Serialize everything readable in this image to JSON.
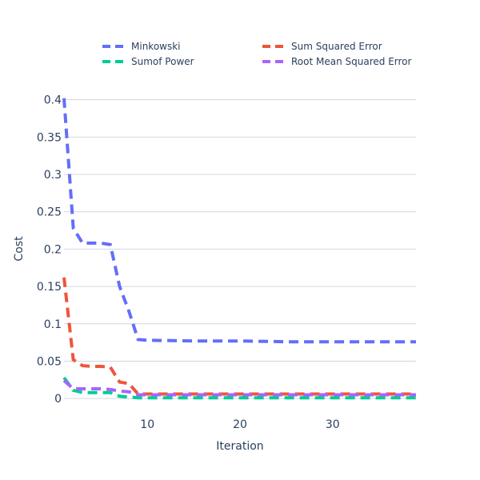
{
  "chart_data": {
    "type": "line",
    "xlabel": "Iteration",
    "ylabel": "Cost",
    "xlim": [
      1,
      39
    ],
    "ylim": [
      -0.002,
      0.405
    ],
    "x_ticks": [
      10,
      20,
      30
    ],
    "y_ticks": [
      0,
      0.05,
      0.1,
      0.15,
      0.2,
      0.25,
      0.3,
      0.35,
      0.4
    ],
    "y_tick_labels": [
      "0",
      "0.05",
      "0.1",
      "0.15",
      "0.2",
      "0.25",
      "0.3",
      "0.35",
      "0.4"
    ],
    "grid": true,
    "legend_position": "top",
    "series": [
      {
        "name": "Minkowski",
        "color": "#636efa",
        "x": [
          1,
          2,
          3,
          4,
          5,
          6,
          7,
          8,
          9,
          10,
          15,
          20,
          25,
          30,
          35,
          39
        ],
        "y": [
          0.402,
          0.228,
          0.208,
          0.208,
          0.208,
          0.206,
          0.15,
          0.117,
          0.079,
          0.078,
          0.077,
          0.077,
          0.076,
          0.076,
          0.076,
          0.076
        ]
      },
      {
        "name": "Sum Squared Error",
        "color": "#ef553b",
        "x": [
          1,
          2,
          3,
          4,
          5,
          6,
          7,
          8,
          9,
          10,
          15,
          20,
          25,
          30,
          35,
          39
        ],
        "y": [
          0.162,
          0.052,
          0.044,
          0.043,
          0.043,
          0.042,
          0.022,
          0.02,
          0.006,
          0.006,
          0.006,
          0.006,
          0.006,
          0.006,
          0.006,
          0.006
        ]
      },
      {
        "name": "Sumof Power",
        "color": "#00cc96",
        "x": [
          1,
          2,
          3,
          4,
          5,
          6,
          7,
          8,
          9,
          10,
          15,
          20,
          25,
          30,
          35,
          39
        ],
        "y": [
          0.028,
          0.011,
          0.008,
          0.008,
          0.008,
          0.008,
          0.003,
          0.002,
          0.001,
          0.001,
          0.001,
          0.001,
          0.001,
          0.001,
          0.001,
          0.001
        ]
      },
      {
        "name": "Root Mean Squared Error",
        "color": "#ab63fa",
        "x": [
          1,
          2,
          3,
          4,
          5,
          6,
          7,
          8,
          9,
          10,
          15,
          20,
          25,
          30,
          35,
          39
        ],
        "y": [
          0.024,
          0.013,
          0.013,
          0.013,
          0.013,
          0.012,
          0.01,
          0.009,
          0.005,
          0.005,
          0.005,
          0.005,
          0.005,
          0.005,
          0.005,
          0.005
        ]
      }
    ]
  }
}
